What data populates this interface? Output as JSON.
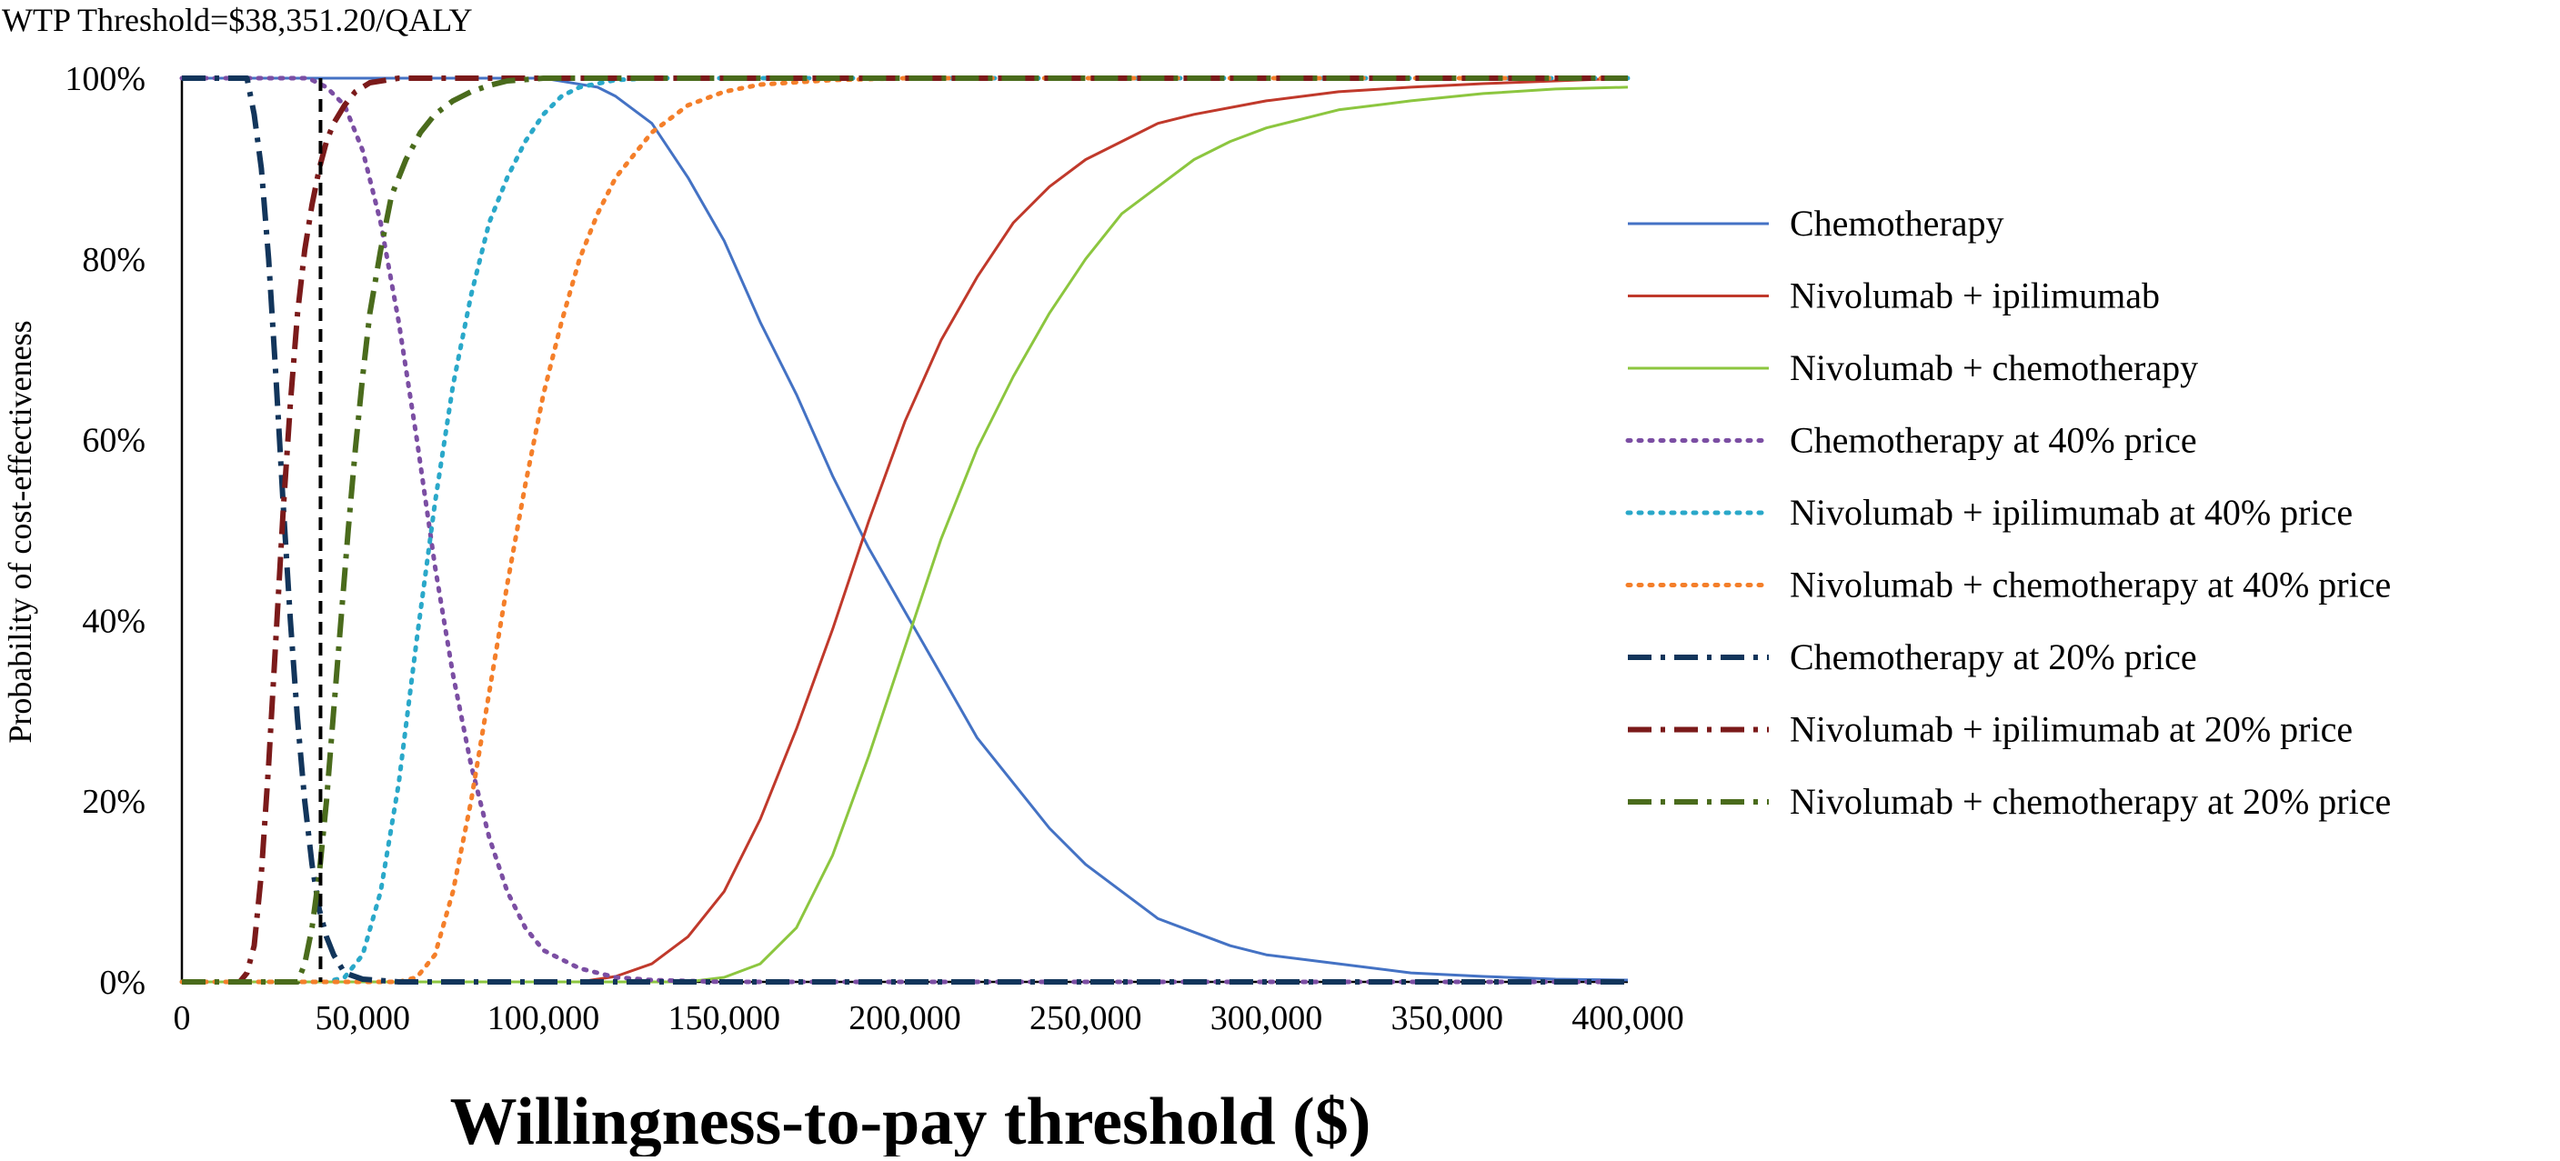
{
  "chart_data": {
    "type": "line",
    "title": "WTP Threshold=$38,351.20/QALY",
    "xlabel": "Willingness-to-pay threshold ($)",
    "ylabel": "Probability of cost-effectiveness",
    "xlim": [
      0,
      400000
    ],
    "ylim": [
      0,
      100
    ],
    "x_ticks": [
      "0",
      "50,000",
      "100,000",
      "150,000",
      "200,000",
      "250,000",
      "300,000",
      "350,000",
      "400,000"
    ],
    "x_tick_values": [
      0,
      50000,
      100000,
      150000,
      200000,
      250000,
      300000,
      350000,
      400000
    ],
    "y_ticks": [
      "0%",
      "20%",
      "40%",
      "60%",
      "80%",
      "100%"
    ],
    "y_tick_values": [
      0,
      20,
      40,
      60,
      80,
      100
    ],
    "grid": false,
    "legend_position": "right",
    "threshold": {
      "x": 38351.2,
      "style": "dashed",
      "color": "#000000"
    },
    "series": [
      {
        "name": "Chemotherapy",
        "color": "#4472C4",
        "style": "solid",
        "points": [
          [
            0,
            100
          ],
          [
            100000,
            100
          ],
          [
            115000,
            99
          ],
          [
            120000,
            98
          ],
          [
            130000,
            95
          ],
          [
            140000,
            89
          ],
          [
            150000,
            82
          ],
          [
            160000,
            73
          ],
          [
            170000,
            65
          ],
          [
            180000,
            56
          ],
          [
            190000,
            48
          ],
          [
            200000,
            41
          ],
          [
            210000,
            34
          ],
          [
            220000,
            27
          ],
          [
            230000,
            22
          ],
          [
            240000,
            17
          ],
          [
            250000,
            13
          ],
          [
            260000,
            10
          ],
          [
            270000,
            7
          ],
          [
            280000,
            5.5
          ],
          [
            290000,
            4
          ],
          [
            300000,
            3
          ],
          [
            320000,
            2
          ],
          [
            340000,
            1
          ],
          [
            360000,
            0.6
          ],
          [
            380000,
            0.3
          ],
          [
            400000,
            0.2
          ]
        ]
      },
      {
        "name": "Nivolumab + ipilimumab",
        "color": "#C0392B",
        "style": "solid",
        "points": [
          [
            0,
            0
          ],
          [
            110000,
            0
          ],
          [
            120000,
            0.6
          ],
          [
            130000,
            2
          ],
          [
            140000,
            5
          ],
          [
            150000,
            10
          ],
          [
            160000,
            18
          ],
          [
            170000,
            28
          ],
          [
            180000,
            39
          ],
          [
            190000,
            51
          ],
          [
            200000,
            62
          ],
          [
            210000,
            71
          ],
          [
            220000,
            78
          ],
          [
            230000,
            84
          ],
          [
            240000,
            88
          ],
          [
            250000,
            91
          ],
          [
            260000,
            93
          ],
          [
            270000,
            95
          ],
          [
            280000,
            96
          ],
          [
            300000,
            97.5
          ],
          [
            320000,
            98.5
          ],
          [
            340000,
            99
          ],
          [
            360000,
            99.4
          ],
          [
            380000,
            99.7
          ],
          [
            400000,
            100
          ]
        ]
      },
      {
        "name": "Nivolumab + chemotherapy",
        "color": "#8CC63F",
        "style": "solid",
        "points": [
          [
            0,
            0
          ],
          [
            140000,
            0
          ],
          [
            150000,
            0.5
          ],
          [
            160000,
            2
          ],
          [
            170000,
            6
          ],
          [
            180000,
            14
          ],
          [
            190000,
            25
          ],
          [
            200000,
            37
          ],
          [
            210000,
            49
          ],
          [
            220000,
            59
          ],
          [
            230000,
            67
          ],
          [
            240000,
            74
          ],
          [
            250000,
            80
          ],
          [
            260000,
            85
          ],
          [
            270000,
            88
          ],
          [
            280000,
            91
          ],
          [
            290000,
            93
          ],
          [
            300000,
            94.5
          ],
          [
            320000,
            96.5
          ],
          [
            340000,
            97.5
          ],
          [
            360000,
            98.3
          ],
          [
            380000,
            98.8
          ],
          [
            400000,
            99
          ]
        ]
      },
      {
        "name": "Chemotherapy at 40% price",
        "color": "#7B4EA3",
        "style": "dotted",
        "points": [
          [
            0,
            100
          ],
          [
            35000,
            100
          ],
          [
            40000,
            99
          ],
          [
            45000,
            97
          ],
          [
            50000,
            92
          ],
          [
            55000,
            84
          ],
          [
            60000,
            73
          ],
          [
            65000,
            60
          ],
          [
            70000,
            46
          ],
          [
            75000,
            34
          ],
          [
            80000,
            24
          ],
          [
            85000,
            16
          ],
          [
            90000,
            10
          ],
          [
            95000,
            6
          ],
          [
            100000,
            3.5
          ],
          [
            110000,
            1.5
          ],
          [
            120000,
            0.5
          ],
          [
            130000,
            0.2
          ],
          [
            150000,
            0
          ],
          [
            400000,
            0
          ]
        ]
      },
      {
        "name": "Nivolumab + ipilimumab at 40% price",
        "color": "#2AA8C9",
        "style": "dotted",
        "points": [
          [
            0,
            0
          ],
          [
            40000,
            0
          ],
          [
            45000,
            0.5
          ],
          [
            50000,
            3
          ],
          [
            55000,
            10
          ],
          [
            60000,
            22
          ],
          [
            65000,
            38
          ],
          [
            70000,
            53
          ],
          [
            75000,
            66
          ],
          [
            80000,
            76
          ],
          [
            85000,
            84
          ],
          [
            90000,
            89
          ],
          [
            95000,
            93
          ],
          [
            100000,
            96
          ],
          [
            105000,
            98
          ],
          [
            110000,
            99
          ],
          [
            120000,
            99.8
          ],
          [
            130000,
            100
          ],
          [
            400000,
            100
          ]
        ]
      },
      {
        "name": "Nivolumab + chemotherapy at 40% price",
        "color": "#F47F2A",
        "style": "dotted",
        "points": [
          [
            0,
            0
          ],
          [
            60000,
            0
          ],
          [
            65000,
            0.5
          ],
          [
            70000,
            3
          ],
          [
            75000,
            10
          ],
          [
            80000,
            20
          ],
          [
            85000,
            32
          ],
          [
            90000,
            44
          ],
          [
            95000,
            55
          ],
          [
            100000,
            65
          ],
          [
            105000,
            73
          ],
          [
            110000,
            80
          ],
          [
            115000,
            85
          ],
          [
            120000,
            89
          ],
          [
            130000,
            94
          ],
          [
            140000,
            97
          ],
          [
            150000,
            98.5
          ],
          [
            160000,
            99.3
          ],
          [
            180000,
            99.8
          ],
          [
            200000,
            100
          ],
          [
            400000,
            100
          ]
        ]
      },
      {
        "name": "Chemotherapy at 20% price",
        "color": "#12355B",
        "style": "dashdot",
        "points": [
          [
            0,
            100
          ],
          [
            18000,
            100
          ],
          [
            20000,
            96
          ],
          [
            22000,
            90
          ],
          [
            24000,
            80
          ],
          [
            26000,
            67
          ],
          [
            28000,
            53
          ],
          [
            30000,
            40
          ],
          [
            32000,
            29
          ],
          [
            34000,
            20
          ],
          [
            36000,
            13
          ],
          [
            38000,
            8
          ],
          [
            40000,
            5
          ],
          [
            42000,
            3
          ],
          [
            45000,
            1
          ],
          [
            50000,
            0.3
          ],
          [
            60000,
            0
          ],
          [
            400000,
            0
          ]
        ]
      },
      {
        "name": "Nivolumab + ipilimumab at 20% price",
        "color": "#7B1A1A",
        "style": "dashdot",
        "points": [
          [
            0,
            0
          ],
          [
            16000,
            0
          ],
          [
            18000,
            1
          ],
          [
            20000,
            4
          ],
          [
            22000,
            12
          ],
          [
            24000,
            24
          ],
          [
            26000,
            38
          ],
          [
            28000,
            52
          ],
          [
            30000,
            64
          ],
          [
            32000,
            74
          ],
          [
            34000,
            81
          ],
          [
            36000,
            86
          ],
          [
            38000,
            90
          ],
          [
            40000,
            93
          ],
          [
            42000,
            95
          ],
          [
            45000,
            97
          ],
          [
            48000,
            98.5
          ],
          [
            52000,
            99.5
          ],
          [
            60000,
            100
          ],
          [
            400000,
            100
          ]
        ]
      },
      {
        "name": "Nivolumab + chemotherapy at 20% price",
        "color": "#4A6B1C",
        "style": "dashdot",
        "points": [
          [
            0,
            0
          ],
          [
            32000,
            0
          ],
          [
            34000,
            2
          ],
          [
            36000,
            6
          ],
          [
            38000,
            12
          ],
          [
            40000,
            20
          ],
          [
            42000,
            30
          ],
          [
            44000,
            40
          ],
          [
            46000,
            50
          ],
          [
            48000,
            59
          ],
          [
            50000,
            67
          ],
          [
            52000,
            74
          ],
          [
            55000,
            81
          ],
          [
            58000,
            87
          ],
          [
            62000,
            91
          ],
          [
            66000,
            94
          ],
          [
            70000,
            96
          ],
          [
            75000,
            97.5
          ],
          [
            80000,
            98.5
          ],
          [
            85000,
            99.2
          ],
          [
            90000,
            99.7
          ],
          [
            100000,
            100
          ],
          [
            400000,
            100
          ]
        ]
      }
    ]
  }
}
